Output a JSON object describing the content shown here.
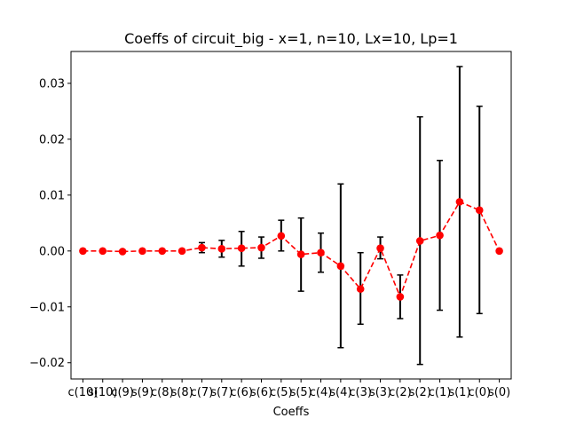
{
  "chart_data": {
    "type": "line",
    "title": "Coeffs of circuit_big - x=1, n=10, Lx=10, Lp=1",
    "xlabel": "Coeffs",
    "ylabel": "",
    "categories": [
      "c(10)",
      "s(10)",
      "c(9)",
      "s(9)",
      "c(8)",
      "s(8)",
      "c(7)",
      "s(7)",
      "c(6)",
      "s(6)",
      "c(5)",
      "s(5)",
      "c(4)",
      "s(4)",
      "c(3)",
      "s(3)",
      "c(2)",
      "s(2)",
      "c(1)",
      "s(1)",
      "c(0)",
      "s(0)"
    ],
    "series": [
      {
        "values": [
          0.0,
          0.0,
          -0.0001,
          0.0,
          0.0,
          0.0,
          0.0006,
          0.0004,
          0.0005,
          0.0006,
          0.0027,
          -0.0006,
          -0.0003,
          -0.0027,
          -0.0068,
          0.0005,
          -0.0082,
          0.0018,
          0.0028,
          0.0088,
          0.0073,
          0.0
        ],
        "error_low": [
          0.0,
          0.0,
          -0.0001,
          0.0,
          0.0,
          0.0,
          -0.0003,
          -0.0011,
          -0.0027,
          -0.0013,
          0.0,
          -0.0072,
          -0.0038,
          -0.0173,
          -0.0131,
          -0.0014,
          -0.0121,
          -0.0203,
          -0.0106,
          -0.0154,
          -0.0112,
          0.0
        ],
        "error_high": [
          0.0,
          0.0,
          -0.0001,
          0.0,
          0.0,
          0.0,
          0.0015,
          0.0019,
          0.0035,
          0.0025,
          0.0055,
          0.0059,
          0.0032,
          0.012,
          -0.0003,
          0.0025,
          -0.0043,
          0.024,
          0.0162,
          0.033,
          0.0259,
          0.0
        ],
        "color": "#ff0000"
      }
    ],
    "ylim": [
      -0.0229,
      0.0357
    ],
    "yticks": [
      -0.02,
      -0.01,
      0.0,
      0.01,
      0.02,
      0.03
    ],
    "ytick_labels": [
      "−0.02",
      "−0.01",
      "0.00",
      "0.01",
      "0.02",
      "0.03"
    ],
    "grid": false,
    "errorbar_color": "#000000"
  }
}
